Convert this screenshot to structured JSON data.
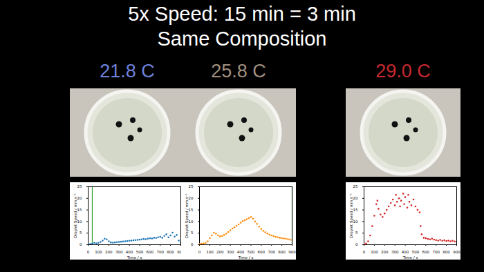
{
  "header": {
    "title": "5x Speed: 15 min = 3 min",
    "subtitle": "Same Composition"
  },
  "chart_data": [
    {
      "type": "scatter",
      "title": "21.8 C",
      "color": "#6d82dc",
      "xlabel": "Time / s",
      "ylabel": "Droplet Speed / mm.s⁻¹",
      "xlim": [
        0,
        900
      ],
      "xticks": [
        0,
        100,
        200,
        300,
        400,
        500,
        600,
        700,
        800,
        900
      ],
      "ylim": [
        0,
        25
      ],
      "yticks": [
        0,
        5,
        10,
        15,
        20,
        25
      ],
      "vlines": [
        40
      ],
      "x": [
        0,
        20,
        40,
        60,
        80,
        100,
        120,
        140,
        160,
        180,
        200,
        220,
        240,
        260,
        280,
        300,
        320,
        340,
        360,
        380,
        400,
        420,
        440,
        460,
        480,
        500,
        520,
        540,
        560,
        580,
        600,
        620,
        640,
        660,
        680,
        700,
        720,
        740,
        760,
        780,
        800,
        820,
        840,
        860,
        880,
        900
      ],
      "series": [
        {
          "color": "#1f77b4",
          "marker": "dot",
          "values": [
            0.2,
            0.3,
            0.5,
            0.8,
            0.6,
            0.8,
            1.2,
            1.8,
            2.6,
            2.3,
            1.5,
            1.0,
            0.9,
            1.0,
            1.1,
            1.2,
            1.3,
            1.4,
            1.5,
            1.6,
            1.7,
            1.8,
            1.9,
            2.0,
            2.1,
            2.2,
            2.3,
            2.5,
            2.4,
            2.6,
            2.8,
            2.7,
            3.0,
            2.9,
            3.2,
            3.4,
            3.0,
            3.8,
            4.5,
            3.2,
            4.0,
            5.2,
            3.5,
            4.2,
            1.8,
            1.0
          ]
        }
      ]
    },
    {
      "type": "scatter",
      "title": "25.8 C",
      "color": "#a09080",
      "xlabel": "Time / s",
      "ylabel": "Droplet Speed / mm.s⁻¹",
      "xlim": [
        0,
        900
      ],
      "xticks": [
        0,
        100,
        200,
        300,
        400,
        500,
        600,
        700,
        800,
        900
      ],
      "ylim": [
        0,
        25
      ],
      "yticks": [
        0,
        5,
        10,
        15,
        20,
        25
      ],
      "vlines": [
        900
      ],
      "x": [
        0,
        20,
        40,
        60,
        80,
        100,
        120,
        140,
        160,
        180,
        200,
        220,
        240,
        260,
        280,
        300,
        320,
        340,
        360,
        380,
        400,
        420,
        440,
        460,
        480,
        500,
        520,
        540,
        560,
        580,
        600,
        620,
        640,
        660,
        680,
        700,
        720,
        740,
        760,
        780,
        800,
        820,
        840,
        860,
        880,
        900
      ],
      "series": [
        {
          "color": "#ff8c0e",
          "marker": "dot",
          "values": [
            0.3,
            0.4,
            0.5,
            0.8,
            1.5,
            2.8,
            4.0,
            5.2,
            4.8,
            4.0,
            3.6,
            3.8,
            4.2,
            4.8,
            5.5,
            6.2,
            7.0,
            7.5,
            8.2,
            8.8,
            9.5,
            10.2,
            10.6,
            11.0,
            11.5,
            12.0,
            11.2,
            10.0,
            9.0,
            7.8,
            6.8,
            6.0,
            5.4,
            4.8,
            4.3,
            4.0,
            3.7,
            3.4,
            3.2,
            3.0,
            2.8,
            2.7,
            2.6,
            2.4,
            2.2,
            2.0
          ]
        }
      ]
    },
    {
      "type": "scatter",
      "title": "29.0 C",
      "color": "#c8282e",
      "xlabel": "Time / s",
      "ylabel": "Droplet Speed / mm.s⁻¹",
      "xlim": [
        0,
        900
      ],
      "xticks": [
        0,
        100,
        200,
        300,
        400,
        500,
        600,
        700,
        800,
        900
      ],
      "ylim": [
        0,
        25
      ],
      "yticks": [
        0,
        5,
        10,
        15,
        20,
        25
      ],
      "vlines": [],
      "x": [
        0,
        20,
        40,
        60,
        80,
        100,
        120,
        130,
        140,
        160,
        180,
        200,
        220,
        240,
        260,
        280,
        300,
        310,
        320,
        340,
        350,
        360,
        380,
        390,
        400,
        420,
        430,
        440,
        460,
        480,
        500,
        520,
        540,
        550,
        560,
        580,
        600,
        620,
        640,
        660,
        680,
        700,
        720,
        740,
        760,
        780,
        800,
        820,
        840,
        860,
        880,
        900
      ],
      "series": [
        {
          "color": "#d62728",
          "marker": "dot",
          "values": [
            0.3,
            0.5,
            1.5,
            4.0,
            8.0,
            12.5,
            17.5,
            19.0,
            15.5,
            13.0,
            12.0,
            13.5,
            15.0,
            16.5,
            18.0,
            19.5,
            17.0,
            21.5,
            18.5,
            20.0,
            16.5,
            19.0,
            22.0,
            17.5,
            20.5,
            16.0,
            21.5,
            18.5,
            17.0,
            19.5,
            16.5,
            15.0,
            14.0,
            8.0,
            4.5,
            3.0,
            2.8,
            2.5,
            2.3,
            2.6,
            2.2,
            2.0,
            1.8,
            2.1,
            1.7,
            1.9,
            1.6,
            1.8,
            1.5,
            1.7,
            1.4,
            1.3
          ]
        }
      ]
    }
  ]
}
